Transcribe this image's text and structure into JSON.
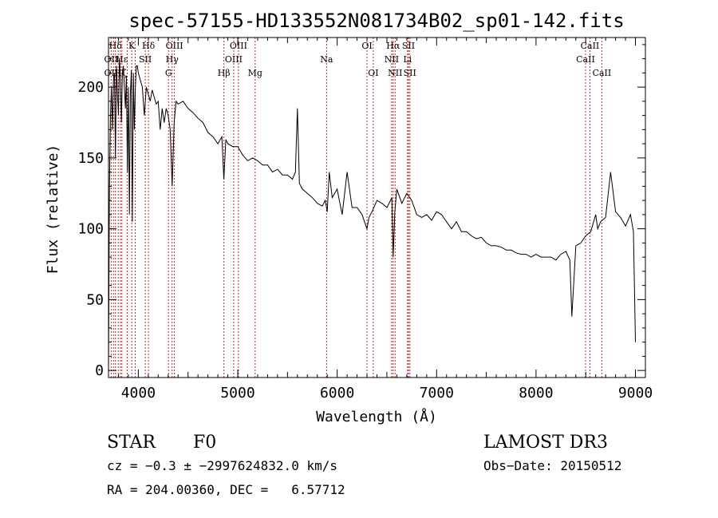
{
  "chart_data": {
    "type": "line",
    "title": "spec-57155-HD133552N081734B02_sp01-142.fits",
    "xlabel": "Wavelength (Å)",
    "ylabel": "Flux (relative)",
    "xlim": [
      3700,
      9100
    ],
    "ylim": [
      -5,
      235
    ],
    "xticks": [
      4000,
      5000,
      6000,
      7000,
      8000,
      9000
    ],
    "yticks": [
      0,
      50,
      100,
      150,
      200
    ],
    "series": [
      {
        "name": "spectrum",
        "x": [
          3700,
          3710,
          3720,
          3730,
          3740,
          3750,
          3760,
          3770,
          3780,
          3790,
          3800,
          3810,
          3820,
          3830,
          3840,
          3850,
          3860,
          3870,
          3880,
          3890,
          3900,
          3910,
          3920,
          3930,
          3940,
          3950,
          3960,
          3970,
          3980,
          3990,
          4000,
          4020,
          4040,
          4060,
          4080,
          4100,
          4120,
          4140,
          4160,
          4180,
          4200,
          4220,
          4240,
          4260,
          4280,
          4300,
          4320,
          4340,
          4360,
          4380,
          4400,
          4450,
          4500,
          4550,
          4600,
          4650,
          4700,
          4750,
          4800,
          4840,
          4860,
          4880,
          4900,
          4950,
          5000,
          5050,
          5100,
          5150,
          5200,
          5250,
          5300,
          5350,
          5400,
          5450,
          5500,
          5550,
          5580,
          5600,
          5620,
          5650,
          5700,
          5750,
          5800,
          5850,
          5880,
          5900,
          5920,
          5950,
          6000,
          6050,
          6100,
          6150,
          6200,
          6250,
          6300,
          6320,
          6350,
          6400,
          6450,
          6500,
          6550,
          6563,
          6580,
          6600,
          6650,
          6700,
          6750,
          6800,
          6850,
          6900,
          6950,
          7000,
          7050,
          7100,
          7150,
          7200,
          7250,
          7300,
          7350,
          7400,
          7450,
          7500,
          7550,
          7600,
          7650,
          7700,
          7750,
          7800,
          7850,
          7900,
          7950,
          8000,
          8050,
          8100,
          8150,
          8200,
          8250,
          8300,
          8340,
          8360,
          8400,
          8450,
          8500,
          8550,
          8600,
          8620,
          8650,
          8700,
          8750,
          8800,
          8850,
          8900,
          8950,
          8980,
          9000
        ],
        "values": [
          0,
          130,
          180,
          200,
          170,
          205,
          210,
          150,
          215,
          195,
          180,
          220,
          205,
          175,
          210,
          215,
          200,
          185,
          208,
          140,
          200,
          110,
          195,
          212,
          105,
          210,
          170,
          200,
          215,
          215,
          210,
          205,
          200,
          180,
          200,
          195,
          190,
          198,
          193,
          188,
          190,
          170,
          185,
          175,
          185,
          180,
          170,
          130,
          175,
          190,
          188,
          190,
          185,
          182,
          178,
          175,
          168,
          165,
          160,
          165,
          135,
          163,
          160,
          158,
          158,
          152,
          148,
          150,
          148,
          145,
          145,
          140,
          142,
          138,
          138,
          135,
          140,
          185,
          132,
          128,
          125,
          122,
          118,
          116,
          120,
          112,
          140,
          122,
          128,
          110,
          140,
          115,
          115,
          110,
          100,
          108,
          112,
          120,
          118,
          115,
          122,
          80,
          112,
          128,
          118,
          125,
          120,
          110,
          108,
          110,
          106,
          112,
          110,
          105,
          100,
          105,
          98,
          98,
          95,
          93,
          94,
          90,
          88,
          88,
          87,
          85,
          85,
          83,
          82,
          82,
          80,
          82,
          80,
          80,
          80,
          78,
          82,
          84,
          78,
          38,
          88,
          90,
          95,
          98,
          110,
          100,
          105,
          108,
          140,
          112,
          108,
          102,
          110,
          98,
          20
        ]
      }
    ],
    "line_labels": [
      {
        "label": "Hδ",
        "wavelength": 3770,
        "row": 1
      },
      {
        "label": "K",
        "wavelength": 3934,
        "row": 1
      },
      {
        "label": "Hδ",
        "wavelength": 4102,
        "row": 1
      },
      {
        "label": "OIII",
        "wavelength": 4363,
        "row": 1
      },
      {
        "label": "OIII",
        "wavelength": 5007,
        "row": 1
      },
      {
        "label": "OI",
        "wavelength": 6300,
        "row": 1
      },
      {
        "label": "Hα",
        "wavelength": 6563,
        "row": 1
      },
      {
        "label": "SII",
        "wavelength": 6717,
        "row": 1
      },
      {
        "label": "CaII",
        "wavelength": 8542,
        "row": 1
      },
      {
        "label": "OII",
        "wavelength": 3727,
        "row": 2
      },
      {
        "label": "Hε",
        "wavelength": 3835,
        "row": 2
      },
      {
        "label": "SII",
        "wavelength": 4070,
        "row": 2
      },
      {
        "label": "Hγ",
        "wavelength": 4340,
        "row": 2
      },
      {
        "label": "OIII",
        "wavelength": 4959,
        "row": 2
      },
      {
        "label": "Na",
        "wavelength": 5893,
        "row": 2
      },
      {
        "label": "NII",
        "wavelength": 6548,
        "row": 2
      },
      {
        "label": "Li",
        "wavelength": 6708,
        "row": 2
      },
      {
        "label": "CaII",
        "wavelength": 8498,
        "row": 2
      },
      {
        "label": "OII",
        "wavelength": 3727,
        "row": 3
      },
      {
        "label": "Hζ",
        "wavelength": 3820,
        "row": 3
      },
      {
        "label": "G",
        "wavelength": 4304,
        "row": 3
      },
      {
        "label": "Hβ",
        "wavelength": 4861,
        "row": 3
      },
      {
        "label": "Mg",
        "wavelength": 5175,
        "row": 3
      },
      {
        "label": "OI",
        "wavelength": 6363,
        "row": 3
      },
      {
        "label": "NII",
        "wavelength": 6583,
        "row": 3
      },
      {
        "label": "SII",
        "wavelength": 6731,
        "row": 3
      },
      {
        "label": "CaII",
        "wavelength": 8662,
        "row": 3
      }
    ],
    "marker_lines": [
      3727,
      3750,
      3770,
      3798,
      3820,
      3835,
      3889,
      3934,
      3968,
      4070,
      4102,
      4304,
      4340,
      4363,
      4861,
      4959,
      5007,
      5175,
      5893,
      6300,
      6363,
      6548,
      6563,
      6583,
      6708,
      6717,
      6731,
      8498,
      8542,
      8662
    ]
  },
  "info": {
    "object": "STAR",
    "subclass": "F0",
    "survey": "LAMOST DR3",
    "redshift": "cz = −0.3 ± −2997624832.0 km/s",
    "obs_date": "Obs−Date: 20150512",
    "coords": "RA = 204.00360, DEC =   6.57712"
  },
  "colors": {
    "spectrum": "#000000",
    "marker_lines": "#cc2222",
    "axes": "#000000"
  }
}
